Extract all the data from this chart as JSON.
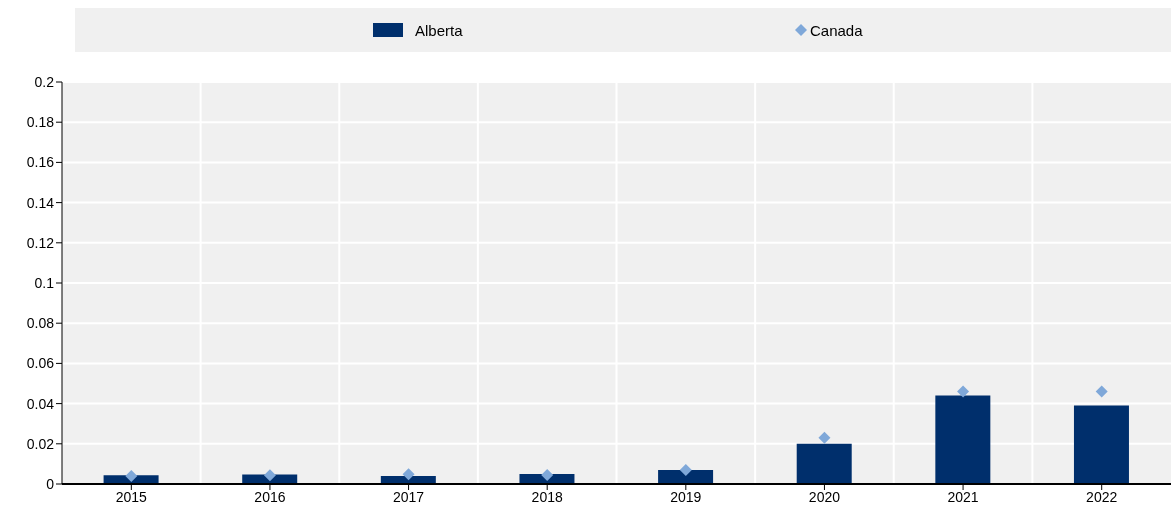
{
  "chart_data": {
    "type": "bar",
    "categories": [
      "2015",
      "2016",
      "2017",
      "2018",
      "2019",
      "2020",
      "2021",
      "2022"
    ],
    "series": [
      {
        "name": "Alberta",
        "color": "#002f6c",
        "values": [
          0.0044,
          0.0047,
          0.004,
          0.005,
          0.007,
          0.02,
          0.044,
          0.039
        ]
      },
      {
        "name": "Canada",
        "type": "scatter",
        "color": "#7fa8d9",
        "marker": "diamond",
        "values": [
          0.004,
          0.0043,
          0.0048,
          0.0045,
          0.007,
          0.023,
          0.046,
          0.046
        ]
      }
    ],
    "ylim": [
      0,
      0.2
    ],
    "yticks": [
      0,
      0.02,
      0.04,
      0.06,
      0.08,
      0.1,
      0.12,
      0.14,
      0.16,
      0.18,
      0.2
    ],
    "grid": true,
    "legend": "top"
  }
}
